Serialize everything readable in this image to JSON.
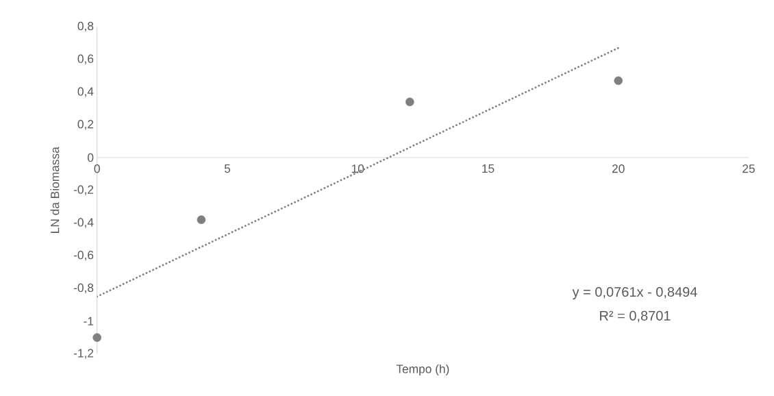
{
  "chart_data": {
    "type": "scatter",
    "xlabel": "Tempo (h)",
    "ylabel": "LN da Biomassa",
    "xlim": [
      0,
      25
    ],
    "xticks": [
      0,
      5,
      10,
      15,
      20,
      25
    ],
    "ylim": [
      -1.2,
      0.8
    ],
    "yticks": [
      {
        "value": -1.2,
        "label": "-1,2"
      },
      {
        "value": -1,
        "label": "-1"
      },
      {
        "value": -0.8,
        "label": "-0,8"
      },
      {
        "value": -0.6,
        "label": "-0,6"
      },
      {
        "value": -0.4,
        "label": "-0,4"
      },
      {
        "value": -0.2,
        "label": "-0,2"
      },
      0,
      {
        "value": 0.2,
        "label": "0,2"
      },
      {
        "value": 0.4,
        "label": "0,4"
      },
      {
        "value": 0.6,
        "label": "0,6"
      },
      {
        "value": 0.8,
        "label": "0,8"
      }
    ],
    "grid": false,
    "legend": false,
    "annotations": [
      "y = 0,0761x - 0,8494",
      "R² = 0,8701"
    ],
    "series": [
      {
        "type": "scatter",
        "marker": "circle",
        "color": "#7f7f7f",
        "x": [
          0,
          4,
          12,
          20
        ],
        "values": [
          -1.1,
          -0.38,
          0.34,
          0.47
        ]
      },
      {
        "type": "line",
        "marker": "none",
        "line_style": "dotted",
        "color": "#7f7f7f",
        "x": [
          0,
          20
        ],
        "values": [
          -0.85,
          0.67
        ]
      }
    ]
  }
}
